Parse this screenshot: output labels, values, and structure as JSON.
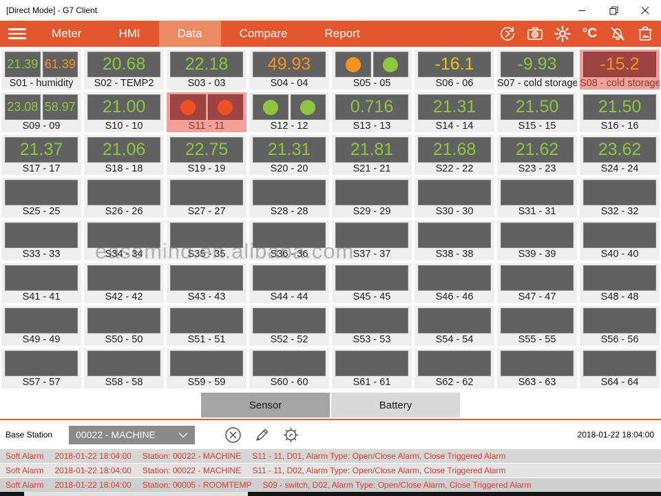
{
  "window": {
    "title": "[Direct Mode] - G7 Client"
  },
  "navbar": {
    "accent": "#E4572E",
    "active_tab_bg": "#EC8A63",
    "tabs": [
      {
        "label": "Meter",
        "active": false
      },
      {
        "label": "HMI",
        "active": false
      },
      {
        "label": "Data",
        "active": true
      },
      {
        "label": "Compare",
        "active": false
      },
      {
        "label": "Report",
        "active": false
      }
    ],
    "celsius_label": "°C"
  },
  "grid": {
    "colors": {
      "green": "#8DC63F",
      "orange": "#F7941D",
      "yellow": "#E2C51B",
      "box": "#616161",
      "alarm_box": "#9E4444",
      "alarm_tile_bg": "#F4A09A"
    },
    "tiles": [
      {
        "label": "S01 - humidity",
        "values": [
          {
            "t": "21.39",
            "c": "green"
          },
          {
            "t": "61.39",
            "c": "orange"
          }
        ]
      },
      {
        "label": "S02 - TEMP2",
        "values": [
          {
            "t": "20.68",
            "c": "green"
          }
        ]
      },
      {
        "label": "S03 - 03",
        "values": [
          {
            "t": "22.18",
            "c": "green"
          }
        ]
      },
      {
        "label": "S04 - 04",
        "values": [
          {
            "t": "49.93",
            "c": "orange"
          }
        ]
      },
      {
        "label": "S05 - 05",
        "circles": [
          "orange",
          "green"
        ]
      },
      {
        "label": "S06 - 06",
        "values": [
          {
            "t": "-16.1",
            "c": "yellow"
          }
        ]
      },
      {
        "label": "S07 - cold storage",
        "values": [
          {
            "t": "-9.93",
            "c": "green"
          }
        ]
      },
      {
        "label": "S08 - cold storage",
        "alarm": true,
        "values": [
          {
            "t": "-15.2",
            "c": "orange"
          }
        ]
      },
      {
        "label": "S09 - 09",
        "values": [
          {
            "t": "23.08",
            "c": "green"
          },
          {
            "t": "58.97",
            "c": "green"
          }
        ]
      },
      {
        "label": "S10 - 10",
        "values": [
          {
            "t": "21.00",
            "c": "green"
          }
        ]
      },
      {
        "label": "S11 - 11",
        "alarm": true,
        "circles": [
          "red",
          "red"
        ]
      },
      {
        "label": "S12 - 12",
        "circles": [
          "green",
          "green"
        ]
      },
      {
        "label": "S13 - 13",
        "values": [
          {
            "t": "0.716",
            "c": "green"
          }
        ]
      },
      {
        "label": "S14 - 14",
        "values": [
          {
            "t": "21.31",
            "c": "green"
          }
        ]
      },
      {
        "label": "S15 - 15",
        "values": [
          {
            "t": "21.50",
            "c": "green"
          }
        ]
      },
      {
        "label": "S16 - 16",
        "values": [
          {
            "t": "21.50",
            "c": "green"
          }
        ]
      },
      {
        "label": "S17 - 17",
        "values": [
          {
            "t": "21.37",
            "c": "green"
          }
        ]
      },
      {
        "label": "S18 - 18",
        "values": [
          {
            "t": "21.06",
            "c": "green"
          }
        ]
      },
      {
        "label": "S19 - 19",
        "values": [
          {
            "t": "22.75",
            "c": "green"
          }
        ]
      },
      {
        "label": "S20 - 20",
        "values": [
          {
            "t": "21.31",
            "c": "green"
          }
        ]
      },
      {
        "label": "S21 - 21",
        "values": [
          {
            "t": "21.81",
            "c": "green"
          }
        ]
      },
      {
        "label": "S22 - 22",
        "values": [
          {
            "t": "21.68",
            "c": "green"
          }
        ]
      },
      {
        "label": "S23 - 23",
        "values": [
          {
            "t": "21.62",
            "c": "green"
          }
        ]
      },
      {
        "label": "S24 - 24",
        "values": [
          {
            "t": "23.62",
            "c": "green"
          }
        ]
      },
      {
        "label": "S25 - 25",
        "empty": true
      },
      {
        "label": "S26 - 26",
        "empty": true
      },
      {
        "label": "S27 - 27",
        "empty": true
      },
      {
        "label": "S28 - 28",
        "empty": true
      },
      {
        "label": "S29 - 29",
        "empty": true
      },
      {
        "label": "S30 - 30",
        "empty": true
      },
      {
        "label": "S31 - 31",
        "empty": true
      },
      {
        "label": "S32 - 32",
        "empty": true
      },
      {
        "label": "S33 - 33",
        "empty": true
      },
      {
        "label": "S34 - 34",
        "empty": true
      },
      {
        "label": "S35 - 35",
        "empty": true
      },
      {
        "label": "S36 - 36",
        "empty": true
      },
      {
        "label": "S37 - 37",
        "empty": true
      },
      {
        "label": "S38 - 38",
        "empty": true
      },
      {
        "label": "S39 - 39",
        "empty": true
      },
      {
        "label": "S40 - 40",
        "empty": true
      },
      {
        "label": "S41 - 41",
        "empty": true
      },
      {
        "label": "S42 - 42",
        "empty": true
      },
      {
        "label": "S43 - 43",
        "empty": true
      },
      {
        "label": "S44 - 44",
        "empty": true
      },
      {
        "label": "S45 - 45",
        "empty": true
      },
      {
        "label": "S46 - 46",
        "empty": true
      },
      {
        "label": "S47 - 47",
        "empty": true
      },
      {
        "label": "S48 - 48",
        "empty": true
      },
      {
        "label": "S49 - 49",
        "empty": true
      },
      {
        "label": "S50 - 50",
        "empty": true
      },
      {
        "label": "S51 - 51",
        "empty": true
      },
      {
        "label": "S52 - 52",
        "empty": true
      },
      {
        "label": "S53 - 53",
        "empty": true
      },
      {
        "label": "S54 - 54",
        "empty": true
      },
      {
        "label": "S55 - 55",
        "empty": true
      },
      {
        "label": "S56 - 56",
        "empty": true
      },
      {
        "label": "S57 - 57",
        "empty": true
      },
      {
        "label": "S58 - 58",
        "empty": true
      },
      {
        "label": "S59 - 59",
        "empty": true
      },
      {
        "label": "S60 - 60",
        "empty": true
      },
      {
        "label": "S61 - 61",
        "empty": true
      },
      {
        "label": "S62 - 62",
        "empty": true
      },
      {
        "label": "S63 - 63",
        "empty": true
      },
      {
        "label": "S64 - 64",
        "empty": true
      }
    ]
  },
  "footer": {
    "buttons": [
      {
        "label": "Sensor",
        "active": true
      },
      {
        "label": "Battery",
        "active": false
      }
    ]
  },
  "base_station": {
    "label": "Base Station",
    "selected": "00022 - MACHINE",
    "timestamp": "2018-01-22 18:04:00"
  },
  "alarms": {
    "rows": [
      {
        "severity": "Soft Alarm",
        "time": "2018-01-22 18:04:00",
        "station": "Station: 00022 - MACHINE",
        "detail": "S11 - 11, D01, Alarm Type: Open/Close Alarm, Close Triggered Alarm"
      },
      {
        "severity": "Soft Alarm",
        "time": "2018-01-22 18:04:00",
        "station": "Station: 00022 - MACHINE",
        "detail": "S11 - 11, D02, Alarm Type: Open/Close Alarm, Close Triggered Alarm"
      },
      {
        "severity": "Soft Alarm",
        "time": "2018-01-22 18:04:00",
        "station": "Station: 00005 - ROOMTEMP",
        "detail": "S09 - switch, D02, Alarm Type: Open/Close Alarm, Close Triggered Alarm"
      }
    ]
  },
  "watermark": {
    "text": "easemind.en.alibaba.com"
  }
}
